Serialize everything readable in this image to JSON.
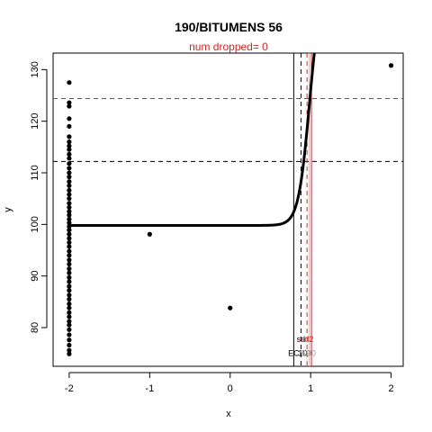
{
  "chart_data": {
    "type": "scatter",
    "title": "190/BITUMENS 56",
    "subtitle": "num dropped= 0",
    "xlabel": "x",
    "ylabel": "y",
    "xlim": [
      -2.2,
      2.15
    ],
    "ylim": [
      72.5,
      133.2
    ],
    "x_ticks": [
      "-2",
      "-1",
      "0",
      "1",
      "2"
    ],
    "y_ticks": [
      "80",
      "90",
      "100",
      "110",
      "120",
      "130"
    ],
    "points": [
      {
        "x": -2,
        "y": 127.5
      },
      {
        "x": -2,
        "y": 123.6
      },
      {
        "x": -2,
        "y": 122.9
      },
      {
        "x": -2,
        "y": 120.5
      },
      {
        "x": -2,
        "y": 119.0
      },
      {
        "x": -2,
        "y": 117.0
      },
      {
        "x": -2,
        "y": 116.0
      },
      {
        "x": -2,
        "y": 115.2
      },
      {
        "x": -2,
        "y": 114.5
      },
      {
        "x": -2,
        "y": 113.6
      },
      {
        "x": -2,
        "y": 112.8
      },
      {
        "x": -2,
        "y": 111.8
      },
      {
        "x": -2,
        "y": 110.9
      },
      {
        "x": -2,
        "y": 110.0
      },
      {
        "x": -2,
        "y": 109.2
      },
      {
        "x": -2,
        "y": 108.3
      },
      {
        "x": -2,
        "y": 107.5
      },
      {
        "x": -2,
        "y": 106.6
      },
      {
        "x": -2,
        "y": 105.8
      },
      {
        "x": -2,
        "y": 105.0
      },
      {
        "x": -2,
        "y": 104.1
      },
      {
        "x": -2,
        "y": 103.3
      },
      {
        "x": -2,
        "y": 102.5
      },
      {
        "x": -2,
        "y": 101.8
      },
      {
        "x": -2,
        "y": 101.0
      },
      {
        "x": -2,
        "y": 100.3
      },
      {
        "x": -2,
        "y": 99.6
      },
      {
        "x": -2,
        "y": 98.9
      },
      {
        "x": -2,
        "y": 98.1
      },
      {
        "x": -2,
        "y": 97.3
      },
      {
        "x": -2,
        "y": 96.5
      },
      {
        "x": -2,
        "y": 95.7
      },
      {
        "x": -2,
        "y": 94.8
      },
      {
        "x": -2,
        "y": 94.0
      },
      {
        "x": -2,
        "y": 93.1
      },
      {
        "x": -2,
        "y": 92.3
      },
      {
        "x": -2,
        "y": 91.4
      },
      {
        "x": -2,
        "y": 90.6
      },
      {
        "x": -2,
        "y": 89.7
      },
      {
        "x": -2,
        "y": 88.9
      },
      {
        "x": -2,
        "y": 88.0
      },
      {
        "x": -2,
        "y": 87.2
      },
      {
        "x": -2,
        "y": 86.3
      },
      {
        "x": -2,
        "y": 85.5
      },
      {
        "x": -2,
        "y": 84.6
      },
      {
        "x": -2,
        "y": 83.8
      },
      {
        "x": -2,
        "y": 82.9
      },
      {
        "x": -2,
        "y": 82.1
      },
      {
        "x": -2,
        "y": 81.2
      },
      {
        "x": -2,
        "y": 80.5
      },
      {
        "x": -2,
        "y": 79.6
      },
      {
        "x": -2,
        "y": 78.6
      },
      {
        "x": -2,
        "y": 77.6
      },
      {
        "x": -2,
        "y": 76.6
      },
      {
        "x": -2,
        "y": 75.6
      },
      {
        "x": -2,
        "y": 74.9
      },
      {
        "x": -1,
        "y": 98.1
      },
      {
        "x": 0,
        "y": 83.8
      },
      {
        "x": 2,
        "y": 130.8
      }
    ],
    "fitted_curve": {
      "lower": 99.8,
      "upper": 147.0,
      "midpoint": 0.985,
      "slope": 14.5
    },
    "hlines": [
      {
        "y": 112.2,
        "color": "#000000",
        "dash": true
      },
      {
        "y": 124.4,
        "color": "#e0201f",
        "dash": true
      }
    ],
    "vlines": [
      {
        "x": 0.79,
        "color": "#000000",
        "dash": false
      },
      {
        "x": 0.88,
        "color": "#000000",
        "dash": true
      },
      {
        "x": 0.955,
        "color": "#e0201f",
        "dash": true
      },
      {
        "x": 0.985,
        "color": "#f0a0a0",
        "dash": false
      },
      {
        "x": 1.01,
        "color": "#e0201f",
        "dash": false
      }
    ],
    "vline_labels": [
      {
        "text": "sd",
        "x": 0.88,
        "y": 77.2,
        "color": "#000000"
      },
      {
        "text": "sd2",
        "x": 0.955,
        "y": 77.2,
        "color": "#e0201f"
      },
      {
        "text": "EC",
        "x": 0.79,
        "y": 74.5,
        "color": "#000000"
      },
      {
        "text": "10",
        "x": 0.9,
        "y": 74.5,
        "color": "#000000"
      },
      {
        "text": "50",
        "x": 0.94,
        "y": 74.5,
        "color": "#999999"
      },
      {
        "text": "90",
        "x": 1.01,
        "y": 74.5,
        "color": "#999999"
      }
    ],
    "colors": {
      "axis": "#000000",
      "points": "#000000",
      "curve": "#000000",
      "subtitle": "#e0201f"
    }
  }
}
